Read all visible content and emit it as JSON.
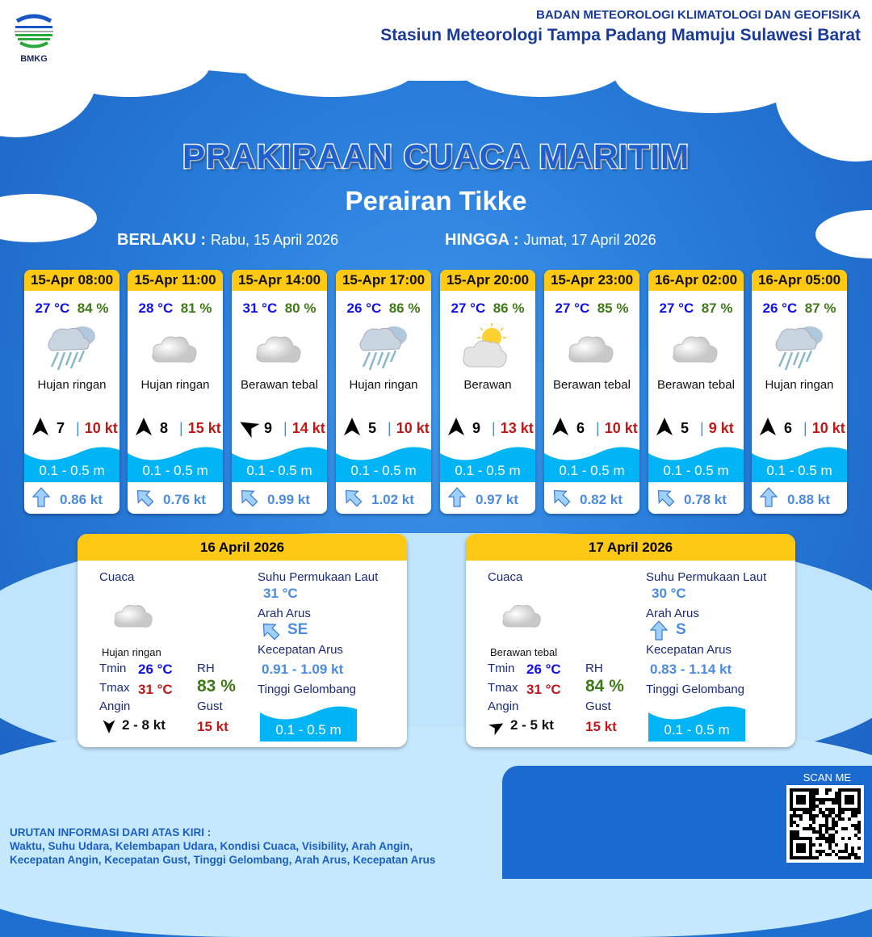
{
  "header": {
    "agency": "BADAN METEOROLOGI KLIMATOLOGI DAN GEOFISIKA",
    "station": "Stasiun Meteorologi Tampa Padang Mamuju Sulawesi Barat",
    "logo_text": "BMKG"
  },
  "title": "PRAKIRAAN CUACA MARITIM",
  "subtitle": "Perairan Tikke",
  "valid": {
    "from_label": "BERLAKU :",
    "from": "Rabu, 15 April 2026",
    "to_label": "HINGGA :",
    "to": "Jumat, 17 April 2026"
  },
  "colors": {
    "header_yellow": "#fdc915",
    "temp": "#1010ee",
    "humidity": "#3f7a18",
    "gust": "#c01818",
    "wave": "#00b4f5",
    "current": "#4a8ae0"
  },
  "forecasts": [
    {
      "time": "15-Apr 08:00",
      "temp": "27 °C",
      "rh": "84 %",
      "icon": "rain-cloud-icon",
      "cond": "Hujan ringan",
      "wind_dir_deg": 0,
      "wind": "7",
      "gust": "10 kt",
      "wave": "0.1 - 0.5 m",
      "cur_dir_deg": 180,
      "cur": "0.86 kt"
    },
    {
      "time": "15-Apr 11:00",
      "temp": "28 °C",
      "rh": "81 %",
      "icon": "cloud-icon",
      "cond": "Hujan ringan",
      "wind_dir_deg": 0,
      "wind": "8",
      "gust": "15 kt",
      "wave": "0.1 - 0.5 m",
      "cur_dir_deg": 135,
      "cur": "0.76 kt"
    },
    {
      "time": "15-Apr 14:00",
      "temp": "31 °C",
      "rh": "80 %",
      "icon": "cloud-icon",
      "cond": "Berawan tebal",
      "wind_dir_deg": -60,
      "wind": "9",
      "gust": "14 kt",
      "wave": "0.1 - 0.5 m",
      "cur_dir_deg": 135,
      "cur": "0.99 kt"
    },
    {
      "time": "15-Apr 17:00",
      "temp": "26 °C",
      "rh": "86 %",
      "icon": "rain-cloud-icon",
      "cond": "Hujan ringan",
      "wind_dir_deg": 0,
      "wind": "5",
      "gust": "10 kt",
      "wave": "0.1 - 0.5 m",
      "cur_dir_deg": 135,
      "cur": "1.02 kt"
    },
    {
      "time": "15-Apr 20:00",
      "temp": "27 °C",
      "rh": "86 %",
      "icon": "partly-cloudy-icon",
      "cond": "Berawan",
      "wind_dir_deg": 0,
      "wind": "9",
      "gust": "13 kt",
      "wave": "0.1 - 0.5 m",
      "cur_dir_deg": 180,
      "cur": "0.97 kt"
    },
    {
      "time": "15-Apr 23:00",
      "temp": "27 °C",
      "rh": "85 %",
      "icon": "cloud-icon",
      "cond": "Berawan tebal",
      "wind_dir_deg": 0,
      "wind": "6",
      "gust": "10 kt",
      "wave": "0.1 - 0.5 m",
      "cur_dir_deg": 135,
      "cur": "0.82 kt"
    },
    {
      "time": "16-Apr 02:00",
      "temp": "27 °C",
      "rh": "87 %",
      "icon": "cloud-icon",
      "cond": "Berawan tebal",
      "wind_dir_deg": 0,
      "wind": "5",
      "gust": "9 kt",
      "wave": "0.1 - 0.5 m",
      "cur_dir_deg": 135,
      "cur": "0.78 kt"
    },
    {
      "time": "16-Apr 05:00",
      "temp": "26 °C",
      "rh": "87 %",
      "icon": "rain-cloud-icon",
      "cond": "Hujan ringan",
      "wind_dir_deg": 0,
      "wind": "6",
      "gust": "10 kt",
      "wave": "0.1 - 0.5 m",
      "cur_dir_deg": 180,
      "cur": "0.88 kt"
    }
  ],
  "daily": [
    {
      "date": "16 April 2026",
      "cuaca_label": "Cuaca",
      "icon": "cloud-icon",
      "cond": "Hujan ringan",
      "tmin_label": "Tmin",
      "tmin": "26 °C",
      "tmax_label": "Tmax",
      "tmax": "31 °C",
      "rh_label": "RH",
      "rh": "83 %",
      "angin_label": "Angin",
      "wind_dir_deg": 180,
      "wind": "2  - 8 kt",
      "gust_label": "Gust",
      "gust": "15 kt",
      "sst_label": "Suhu Permukaan Laut",
      "sst": "31 °C",
      "cur_dir_label": "Arah Arus",
      "cur_dir_deg": 135,
      "cur_dir": "SE",
      "cur_speed_label": "Kecepatan Arus",
      "cur_speed": "0.91 - 1.09 kt",
      "wave_label": "Tinggi Gelombang",
      "wave": "0.1 - 0.5 m"
    },
    {
      "date": "17 April 2026",
      "cuaca_label": "Cuaca",
      "icon": "cloud-icon",
      "cond": "Berawan tebal",
      "tmin_label": "Tmin",
      "tmin": "26 °C",
      "tmax_label": "Tmax",
      "tmax": "31 °C",
      "rh_label": "RH",
      "rh": "84 %",
      "angin_label": "Angin",
      "wind_dir_deg": 60,
      "wind": "2  - 5 kt",
      "gust_label": "Gust",
      "gust": "15 kt",
      "sst_label": "Suhu Permukaan Laut",
      "sst": "30 °C",
      "cur_dir_label": "Arah Arus",
      "cur_dir_deg": 180,
      "cur_dir": "S",
      "cur_speed_label": "Kecepatan Arus",
      "cur_speed": "0.83  - 1.14 kt",
      "wave_label": "Tinggi Gelombang",
      "wave": "0.1 - 0.5 m"
    }
  ],
  "footer": {
    "heading": "URUTAN INFORMASI DARI ATAS KIRI :",
    "line1": "Waktu, Suhu Udara, Kelembapan Udara, Kondisi Cuaca, Visibility, Arah Angin,",
    "line2": "Kecepatan Angin, Kecepatan Gust, Tinggi Gelombang, Arah Arus, Kecepatan Arus"
  },
  "qr": {
    "label": "SCAN ME"
  }
}
